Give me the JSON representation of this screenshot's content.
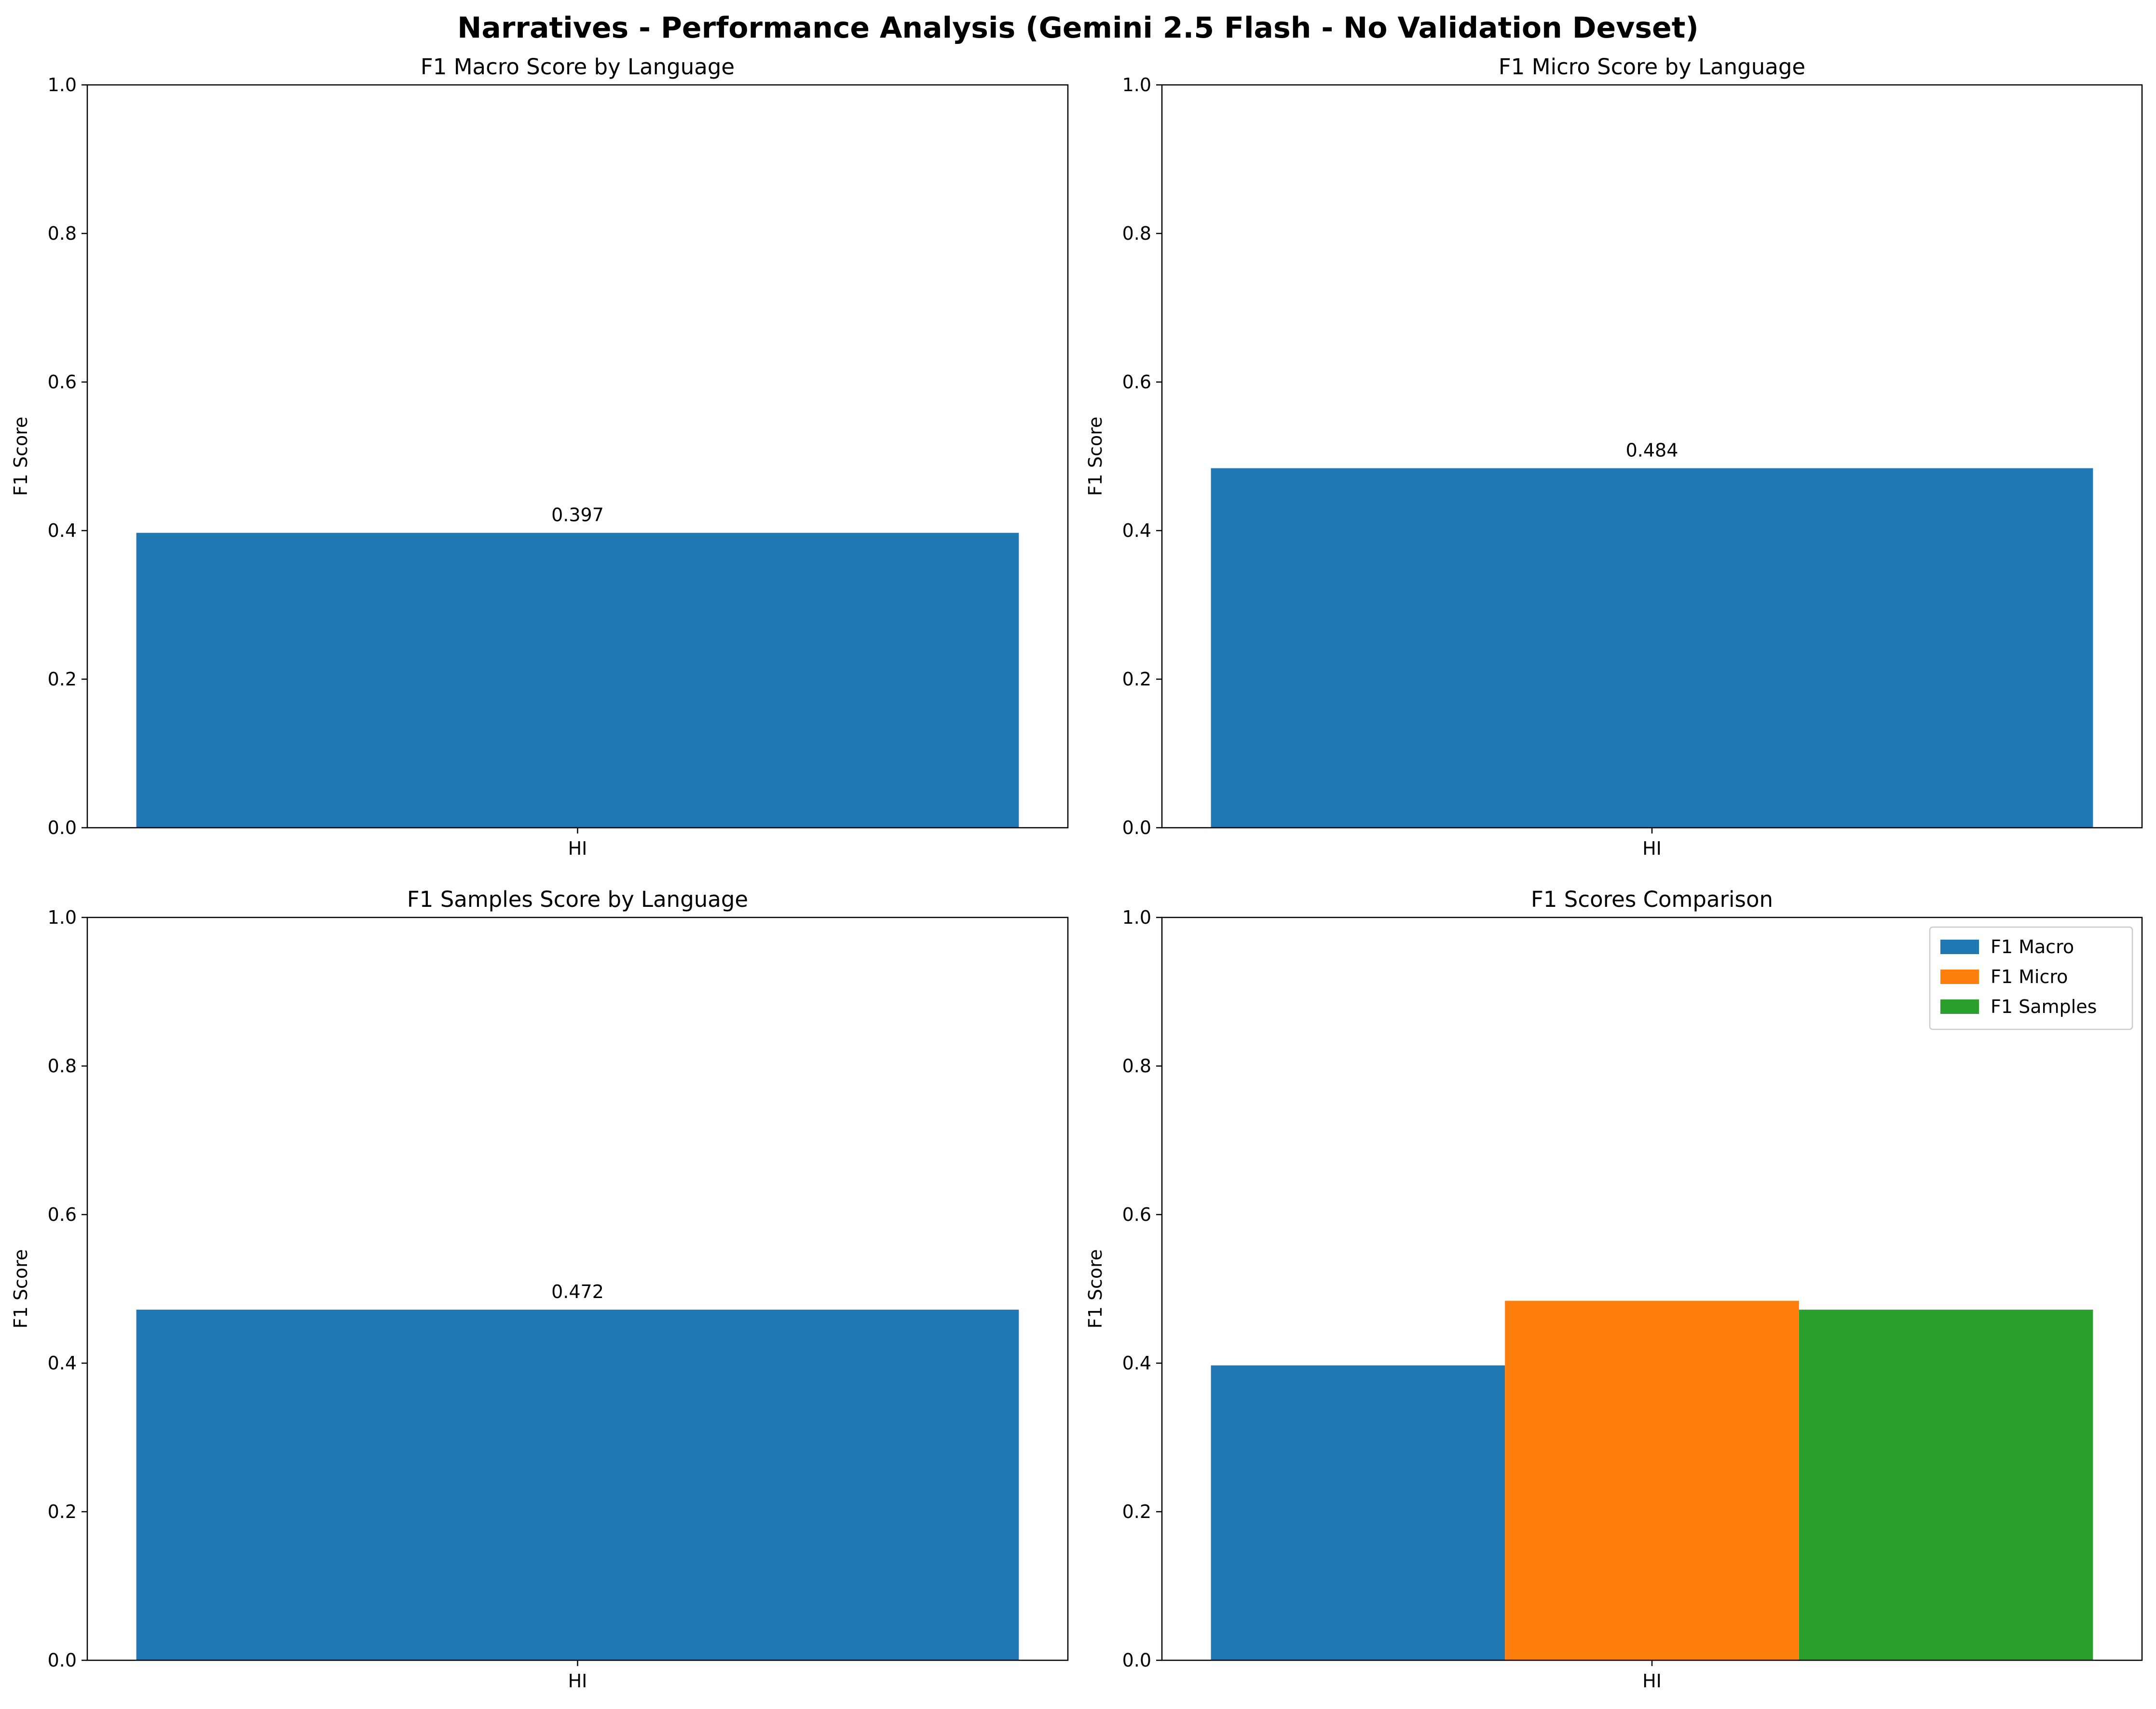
{
  "figure": {
    "title": "Narratives - Performance Analysis (Gemini 2.5 Flash - No Validation Devset)"
  },
  "colors": {
    "blue": "#1f77b4",
    "orange": "#ff7f0e",
    "green": "#2ca02c"
  },
  "chart_data": [
    {
      "type": "bar",
      "title": "F1 Macro Score by Language",
      "xlabel": "",
      "ylabel": "F1 Score",
      "ylim": [
        0,
        1
      ],
      "yticks": [
        "0.0",
        "0.2",
        "0.4",
        "0.6",
        "0.8",
        "1.0"
      ],
      "categories": [
        "HI"
      ],
      "values": [
        0.397
      ],
      "value_labels": [
        "0.397"
      ],
      "grid": false
    },
    {
      "type": "bar",
      "title": "F1 Micro Score by Language",
      "xlabel": "",
      "ylabel": "F1 Score",
      "ylim": [
        0,
        1
      ],
      "yticks": [
        "0.0",
        "0.2",
        "0.4",
        "0.6",
        "0.8",
        "1.0"
      ],
      "categories": [
        "HI"
      ],
      "values": [
        0.484
      ],
      "value_labels": [
        "0.484"
      ],
      "grid": false
    },
    {
      "type": "bar",
      "title": "F1 Samples Score by Language",
      "xlabel": "",
      "ylabel": "F1 Score",
      "ylim": [
        0,
        1
      ],
      "yticks": [
        "0.0",
        "0.2",
        "0.4",
        "0.6",
        "0.8",
        "1.0"
      ],
      "categories": [
        "HI"
      ],
      "values": [
        0.472
      ],
      "value_labels": [
        "0.472"
      ],
      "grid": false
    },
    {
      "type": "bar",
      "title": "F1 Scores Comparison",
      "xlabel": "",
      "ylabel": "F1 Score",
      "ylim": [
        0,
        1
      ],
      "yticks": [
        "0.0",
        "0.2",
        "0.4",
        "0.6",
        "0.8",
        "1.0"
      ],
      "categories": [
        "HI"
      ],
      "series": [
        {
          "name": "F1 Macro",
          "values": [
            0.397
          ],
          "color": "#1f77b4"
        },
        {
          "name": "F1 Micro",
          "values": [
            0.484
          ],
          "color": "#ff7f0e"
        },
        {
          "name": "F1 Samples",
          "values": [
            0.472
          ],
          "color": "#2ca02c"
        }
      ],
      "legend": "upper right",
      "grid": false
    }
  ]
}
